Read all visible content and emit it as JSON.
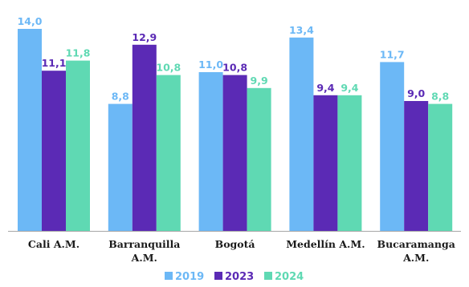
{
  "chart_data": {
    "type": "bar",
    "title": "",
    "xlabel": "",
    "ylabel": "",
    "ylim": [
      0,
      14.0
    ],
    "grid": false,
    "legend_position": "bottom",
    "categories": [
      [
        "Cali A.M."
      ],
      [
        "Barranquilla",
        "A.M."
      ],
      [
        "Bogotá"
      ],
      [
        "Medellín A.M."
      ],
      [
        "Bucaramanga",
        "A.M."
      ]
    ],
    "series": [
      {
        "name": "2019",
        "color": "#6cb8f6",
        "label_color": "#6cb8f6",
        "values": [
          14.0,
          8.8,
          11.0,
          13.4,
          11.7
        ],
        "labels": [
          "14,0",
          "8,8",
          "11,0",
          "13,4",
          "11,7"
        ]
      },
      {
        "name": "2023",
        "color": "#5b2ab5",
        "label_color": "#5b2ab5",
        "values": [
          11.1,
          12.9,
          10.8,
          9.4,
          9.0
        ],
        "labels": [
          "11,1",
          "12,9",
          "10,8",
          "9,4",
          "9,0"
        ]
      },
      {
        "name": "2024",
        "color": "#5fd9b3",
        "label_color": "#5fd9b3",
        "values": [
          11.8,
          10.8,
          9.9,
          9.4,
          8.8
        ],
        "labels": [
          "11,8",
          "10,8",
          "9,9",
          "9,4",
          "8,8"
        ]
      }
    ],
    "axis_color": "#a6a6a6"
  }
}
